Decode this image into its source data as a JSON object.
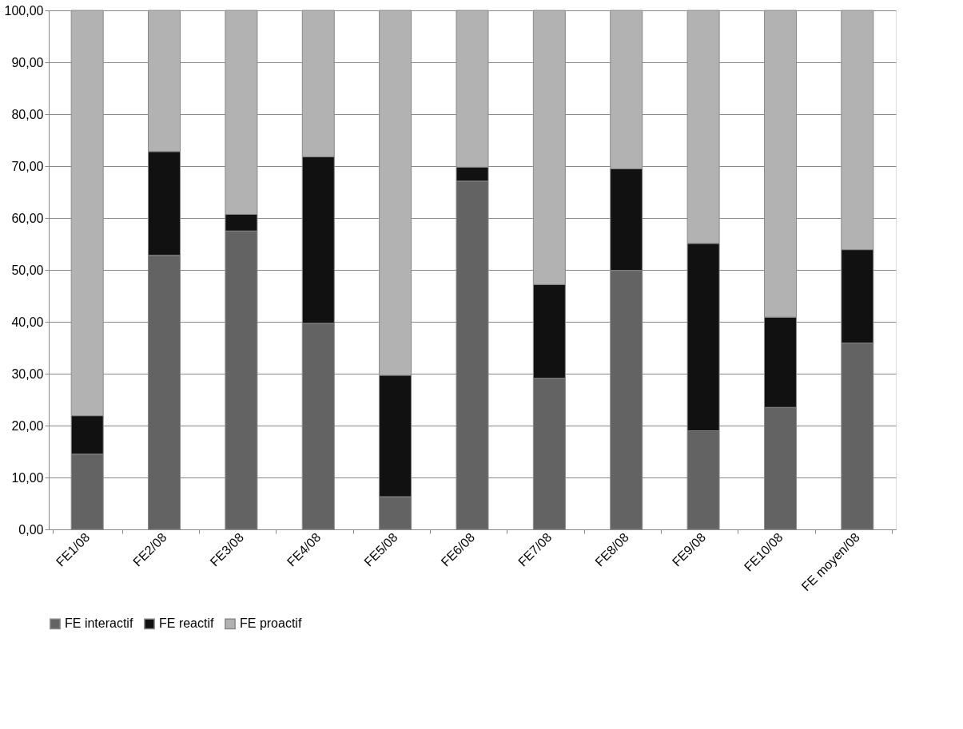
{
  "chart_data": {
    "type": "bar",
    "stacked": true,
    "categories": [
      "FE1/08",
      "FE2/08",
      "FE3/08",
      "FE4/08",
      "FE5/08",
      "FE6/08",
      "FE7/08",
      "FE8/08",
      "FE9/08",
      "FE10/08",
      "FE moyen/08"
    ],
    "series": [
      {
        "name": "FE interactif",
        "color": "#636363",
        "values": [
          14.5,
          52.8,
          57.5,
          39.7,
          6.3,
          67.1,
          29.1,
          49.9,
          19.0,
          23.5,
          35.9
        ]
      },
      {
        "name": "FE reactif",
        "color": "#111111",
        "values": [
          7.4,
          20.0,
          3.2,
          32.1,
          23.4,
          2.7,
          18.1,
          19.6,
          36.1,
          17.4,
          18.0
        ]
      },
      {
        "name": "FE proactif",
        "color": "#b2b2b2",
        "values": [
          78.1,
          27.2,
          39.3,
          28.2,
          70.3,
          30.2,
          52.8,
          30.5,
          44.9,
          59.1,
          46.1
        ]
      }
    ],
    "ylim": [
      0,
      100
    ],
    "yticks": [
      {
        "value": 0,
        "label": "0,00"
      },
      {
        "value": 10,
        "label": "10,00"
      },
      {
        "value": 20,
        "label": "20,00"
      },
      {
        "value": 30,
        "label": "30,00"
      },
      {
        "value": 40,
        "label": "40,00"
      },
      {
        "value": 50,
        "label": "50,00"
      },
      {
        "value": 60,
        "label": "60,00"
      },
      {
        "value": 70,
        "label": "70,00"
      },
      {
        "value": 80,
        "label": "80,00"
      },
      {
        "value": 90,
        "label": "90,00"
      },
      {
        "value": 100,
        "label": "100,00"
      }
    ],
    "grid": "y",
    "legend": "bottom"
  }
}
